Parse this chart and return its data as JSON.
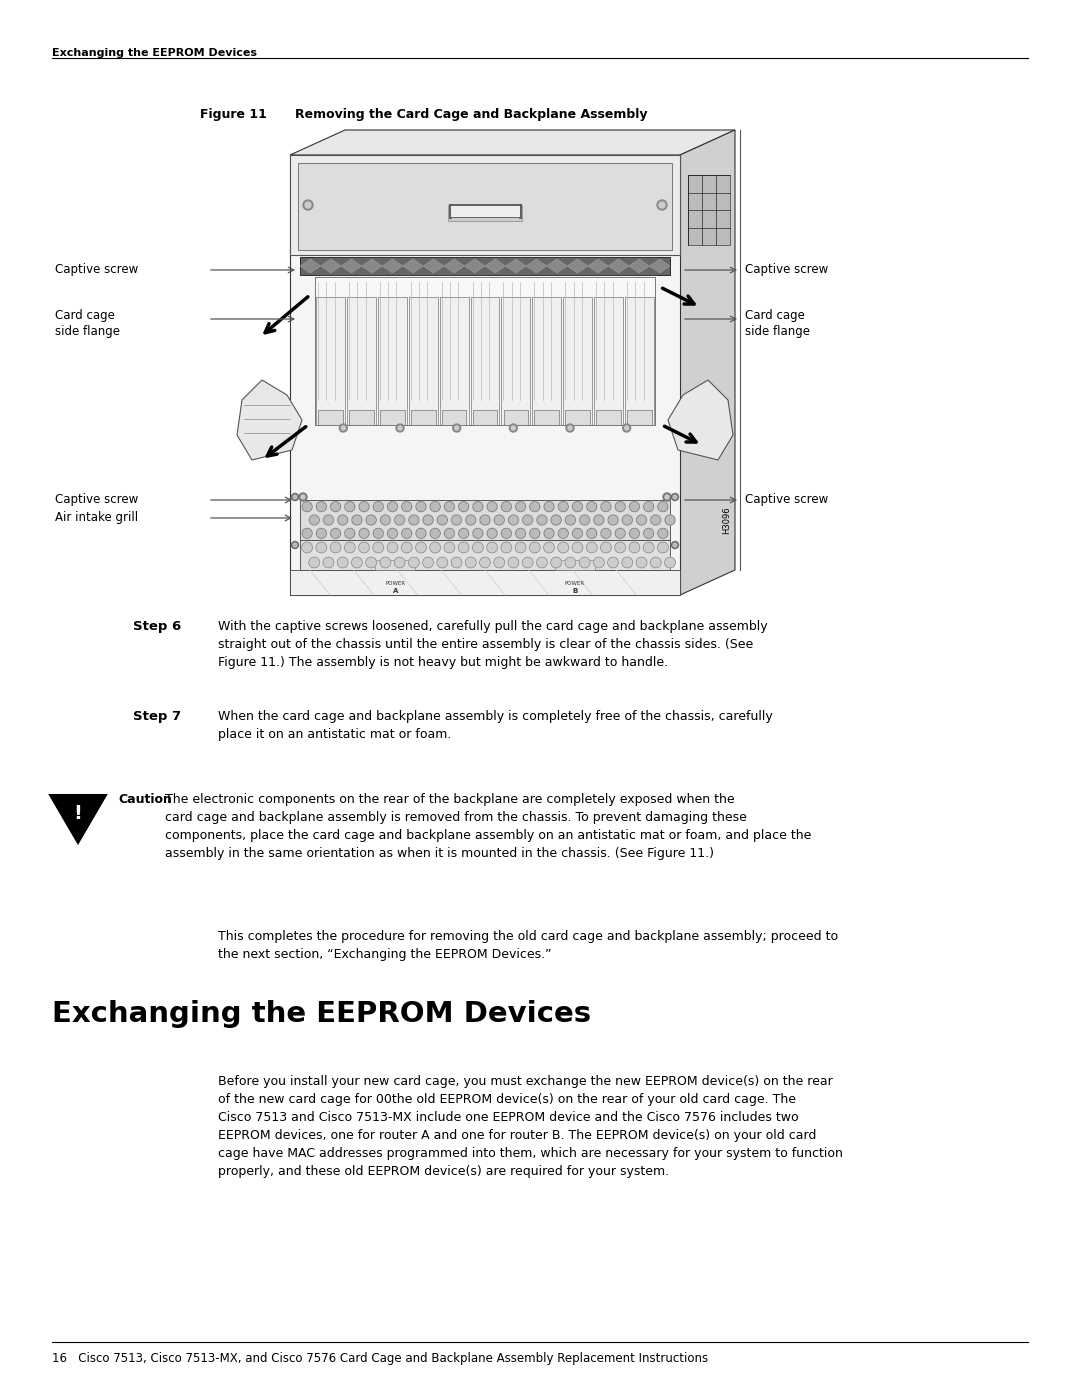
{
  "bg_color": "#ffffff",
  "header_text": "Exchanging the EEPROM Devices",
  "fig_label": "Figure 11",
  "fig_caption": "Removing the Card Cage and Backplane Assembly",
  "step6_label": "Step 6",
  "step6_text": "With the captive screws loosened, carefully pull the card cage and backplane assembly\nstraight out of the chassis until the entire assembly is clear of the chassis sides. (See\nFigure 11.) The assembly is not heavy but might be awkward to handle.",
  "step7_label": "Step 7",
  "step7_text": "When the card cage and backplane assembly is completely free of the chassis, carefully\nplace it on an antistatic mat or foam.",
  "caution_label": "Caution",
  "caution_text": "The electronic components on the rear of the backplane are completely exposed when the\ncard cage and backplane assembly is removed from the chassis. To prevent damaging these\ncomponents, place the card cage and backplane assembly on an antistatic mat or foam, and place the\nassembly in the same orientation as when it is mounted in the chassis. (See Figure 11.)",
  "closing_text": "This completes the procedure for removing the old card cage and backplane assembly; proceed to\nthe next section, “Exchanging the EEPROM Devices.”",
  "section_title": "Exchanging the EEPROM Devices",
  "section_body": "Before you install your new card cage, you must exchange the new EEPROM device(s) on the rear\nof the new card cage for 00the old EEPROM device(s) on the rear of your old card cage. The\nCisco 7513 and Cisco 7513-MX include one EEPROM device and the Cisco 7576 includes two\nEEPROM devices, one for router A and one for router B. The EEPROM device(s) on your old card\ncage have MAC addresses programmed into them, which are necessary for your system to function\nproperly, and these old EEPROM device(s) are required for your system.",
  "footer_text": "16   Cisco 7513, Cisco 7513-MX, and Cisco 7576 Card Cage and Backplane Assembly Replacement Instructions",
  "label_captive_screw": "Captive screw",
  "label_card_cage_flange": "Card cage\nside flange",
  "label_air_intake": "Air intake grill",
  "label_h3096": "H3096"
}
